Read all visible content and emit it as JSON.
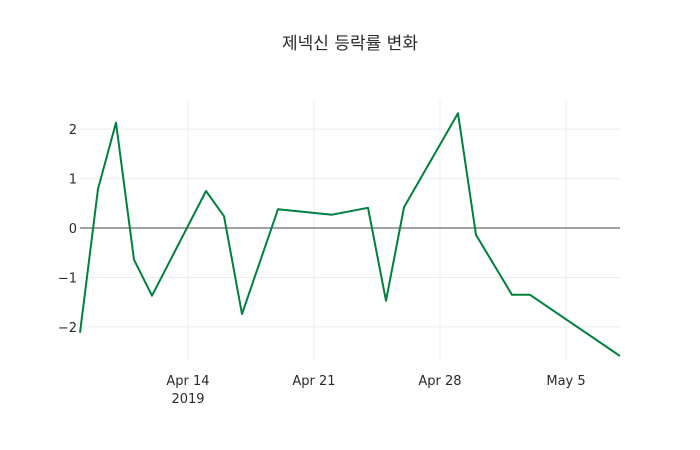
{
  "chart_data": {
    "type": "line",
    "title": "제넥신 등락률 변화",
    "xlabel": "",
    "ylabel": "",
    "x": [
      "2019-04-08",
      "2019-04-09",
      "2019-04-10",
      "2019-04-11",
      "2019-04-12",
      "2019-04-15",
      "2019-04-16",
      "2019-04-17",
      "2019-04-19",
      "2019-04-22",
      "2019-04-24",
      "2019-04-25",
      "2019-04-26",
      "2019-04-29",
      "2019-04-30",
      "2019-05-02",
      "2019-05-03",
      "2019-05-08"
    ],
    "series": [
      {
        "name": "등락률",
        "color": "#00803f",
        "values": [
          -2.12,
          0.79,
          2.13,
          -0.64,
          -1.37,
          0.75,
          0.24,
          -1.74,
          0.38,
          0.27,
          0.41,
          -1.47,
          0.42,
          2.32,
          -0.14,
          -1.35,
          -1.35,
          -2.59
        ]
      }
    ],
    "ylim": [
      -2.67,
      2.59
    ],
    "xlim": [
      "2019-04-08",
      "2019-05-08"
    ],
    "y_ticks": [
      {
        "value": 2,
        "label": "2"
      },
      {
        "value": 1,
        "label": "1"
      },
      {
        "value": 0,
        "label": "0"
      },
      {
        "value": -1,
        "label": "−1"
      },
      {
        "value": -2,
        "label": "−2"
      }
    ],
    "x_ticks": [
      {
        "date": "2019-04-14",
        "label": "Apr 14",
        "sublabel": "2019"
      },
      {
        "date": "2019-04-21",
        "label": "Apr 21",
        "sublabel": ""
      },
      {
        "date": "2019-04-28",
        "label": "Apr 28",
        "sublabel": ""
      },
      {
        "date": "2019-05-05",
        "label": "May 5",
        "sublabel": ""
      }
    ],
    "grid": true,
    "zero_line": true,
    "legend": "none"
  }
}
